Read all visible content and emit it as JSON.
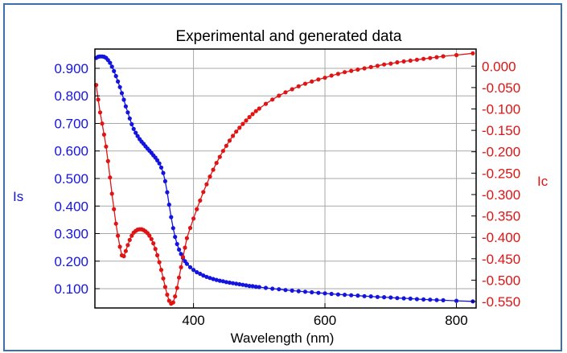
{
  "chart_data": {
    "type": "line",
    "title": "Experimental and generated data",
    "xlabel": "Wavelength (nm)",
    "ylabel_left": "Is",
    "ylabel_right": "Ic",
    "xlim": [
      250,
      830
    ],
    "ylim_left": [
      0.03,
      0.97
    ],
    "ylim_right": [
      -0.565,
      0.04
    ],
    "x_ticks": [
      "400",
      "600",
      "800"
    ],
    "y_left_ticks": [
      "0.100",
      "0.200",
      "0.300",
      "0.400",
      "0.500",
      "0.600",
      "0.700",
      "0.800",
      "0.900"
    ],
    "y_right_ticks": [
      "0.000",
      "-0.050",
      "-0.100",
      "-0.150",
      "-0.200",
      "-0.250",
      "-0.300",
      "-0.350",
      "-0.400",
      "-0.450",
      "-0.500",
      "-0.550"
    ],
    "grid": true,
    "colors": {
      "Is": "#1414e0",
      "Ic": "#e01414",
      "grid": "#a8a8a8",
      "frame": "#3a6fb0"
    },
    "series": [
      {
        "axis": "left",
        "color": "#1414e0",
        "points": [
          [
            252,
            0.938
          ],
          [
            255,
            0.942
          ],
          [
            258,
            0.943
          ],
          [
            261,
            0.943
          ],
          [
            264,
            0.942
          ],
          [
            267,
            0.938
          ],
          [
            270,
            0.93
          ],
          [
            273,
            0.92
          ],
          [
            276,
            0.906
          ],
          [
            279,
            0.89
          ],
          [
            282,
            0.872
          ],
          [
            285,
            0.852
          ],
          [
            288,
            0.832
          ],
          [
            291,
            0.81
          ],
          [
            294,
            0.786
          ],
          [
            297,
            0.762
          ],
          [
            300,
            0.74
          ],
          [
            303,
            0.718
          ],
          [
            306,
            0.697
          ],
          [
            309,
            0.68
          ],
          [
            312,
            0.666
          ],
          [
            315,
            0.654
          ],
          [
            318,
            0.643
          ],
          [
            321,
            0.634
          ],
          [
            324,
            0.626
          ],
          [
            327,
            0.617
          ],
          [
            330,
            0.609
          ],
          [
            333,
            0.601
          ],
          [
            336,
            0.593
          ],
          [
            339,
            0.584
          ],
          [
            342,
            0.576
          ],
          [
            345,
            0.566
          ],
          [
            348,
            0.555
          ],
          [
            351,
            0.54
          ],
          [
            354,
            0.52
          ],
          [
            357,
            0.49
          ],
          [
            360,
            0.45
          ],
          [
            363,
            0.405
          ],
          [
            366,
            0.36
          ],
          [
            369,
            0.32
          ],
          [
            372,
            0.288
          ],
          [
            375,
            0.262
          ],
          [
            378,
            0.242
          ],
          [
            381,
            0.226
          ],
          [
            384,
            0.212
          ],
          [
            387,
            0.2
          ],
          [
            390,
            0.19
          ],
          [
            395,
            0.178
          ],
          [
            400,
            0.168
          ],
          [
            405,
            0.16
          ],
          [
            410,
            0.154
          ],
          [
            415,
            0.148
          ],
          [
            420,
            0.143
          ],
          [
            425,
            0.139
          ],
          [
            430,
            0.135
          ],
          [
            435,
            0.132
          ],
          [
            440,
            0.129
          ],
          [
            445,
            0.127
          ],
          [
            450,
            0.124
          ],
          [
            455,
            0.122
          ],
          [
            460,
            0.12
          ],
          [
            465,
            0.118
          ],
          [
            470,
            0.116
          ],
          [
            475,
            0.114
          ],
          [
            480,
            0.112
          ],
          [
            485,
            0.11
          ],
          [
            490,
            0.109
          ],
          [
            495,
            0.107
          ],
          [
            500,
            0.106
          ],
          [
            510,
            0.103
          ],
          [
            520,
            0.1
          ],
          [
            530,
            0.098
          ],
          [
            540,
            0.095
          ],
          [
            550,
            0.093
          ],
          [
            560,
            0.091
          ],
          [
            570,
            0.089
          ],
          [
            580,
            0.087
          ],
          [
            590,
            0.085
          ],
          [
            600,
            0.083
          ],
          [
            610,
            0.081
          ],
          [
            620,
            0.079
          ],
          [
            630,
            0.078
          ],
          [
            640,
            0.076
          ],
          [
            650,
            0.075
          ],
          [
            660,
            0.073
          ],
          [
            670,
            0.072
          ],
          [
            680,
            0.07
          ],
          [
            690,
            0.069
          ],
          [
            700,
            0.068
          ],
          [
            710,
            0.066
          ],
          [
            720,
            0.065
          ],
          [
            730,
            0.064
          ],
          [
            740,
            0.062
          ],
          [
            750,
            0.061
          ],
          [
            760,
            0.06
          ],
          [
            770,
            0.059
          ],
          [
            780,
            0.058
          ],
          [
            800,
            0.056
          ],
          [
            825,
            0.054
          ]
        ]
      },
      {
        "axis": "right",
        "color": "#e01414",
        "points": [
          [
            252,
            -0.044
          ],
          [
            255,
            -0.078
          ],
          [
            258,
            -0.108
          ],
          [
            261,
            -0.134
          ],
          [
            264,
            -0.16
          ],
          [
            267,
            -0.188
          ],
          [
            270,
            -0.222
          ],
          [
            273,
            -0.26
          ],
          [
            276,
            -0.298
          ],
          [
            279,
            -0.334
          ],
          [
            282,
            -0.368
          ],
          [
            285,
            -0.396
          ],
          [
            288,
            -0.422
          ],
          [
            291,
            -0.442
          ],
          [
            294,
            -0.444
          ],
          [
            297,
            -0.432
          ],
          [
            300,
            -0.418
          ],
          [
            303,
            -0.406
          ],
          [
            306,
            -0.396
          ],
          [
            309,
            -0.389
          ],
          [
            312,
            -0.385
          ],
          [
            315,
            -0.382
          ],
          [
            318,
            -0.381
          ],
          [
            321,
            -0.381
          ],
          [
            324,
            -0.383
          ],
          [
            327,
            -0.386
          ],
          [
            330,
            -0.39
          ],
          [
            333,
            -0.396
          ],
          [
            336,
            -0.404
          ],
          [
            339,
            -0.414
          ],
          [
            342,
            -0.427
          ],
          [
            345,
            -0.442
          ],
          [
            348,
            -0.458
          ],
          [
            351,
            -0.476
          ],
          [
            354,
            -0.496
          ],
          [
            357,
            -0.516
          ],
          [
            360,
            -0.534
          ],
          [
            363,
            -0.548
          ],
          [
            366,
            -0.555
          ],
          [
            369,
            -0.552
          ],
          [
            372,
            -0.538
          ],
          [
            375,
            -0.518
          ],
          [
            378,
            -0.494
          ],
          [
            381,
            -0.47
          ],
          [
            384,
            -0.446
          ],
          [
            387,
            -0.424
          ],
          [
            390,
            -0.402
          ],
          [
            395,
            -0.378
          ],
          [
            400,
            -0.356
          ],
          [
            405,
            -0.334
          ],
          [
            410,
            -0.314
          ],
          [
            415,
            -0.294
          ],
          [
            420,
            -0.276
          ],
          [
            425,
            -0.258
          ],
          [
            430,
            -0.242
          ],
          [
            435,
            -0.226
          ],
          [
            440,
            -0.212
          ],
          [
            445,
            -0.198
          ],
          [
            450,
            -0.186
          ],
          [
            455,
            -0.174
          ],
          [
            460,
            -0.163
          ],
          [
            465,
            -0.153
          ],
          [
            470,
            -0.144
          ],
          [
            475,
            -0.135
          ],
          [
            480,
            -0.127
          ],
          [
            485,
            -0.119
          ],
          [
            490,
            -0.112
          ],
          [
            495,
            -0.105
          ],
          [
            500,
            -0.099
          ],
          [
            510,
            -0.088
          ],
          [
            520,
            -0.078
          ],
          [
            530,
            -0.069
          ],
          [
            540,
            -0.061
          ],
          [
            550,
            -0.054
          ],
          [
            560,
            -0.047
          ],
          [
            570,
            -0.041
          ],
          [
            580,
            -0.036
          ],
          [
            590,
            -0.031
          ],
          [
            600,
            -0.027
          ],
          [
            610,
            -0.022
          ],
          [
            620,
            -0.018
          ],
          [
            630,
            -0.014
          ],
          [
            640,
            -0.011
          ],
          [
            650,
            -0.008
          ],
          [
            660,
            -0.005
          ],
          [
            670,
            -0.002
          ],
          [
            680,
            0.001
          ],
          [
            690,
            0.004
          ],
          [
            700,
            0.006
          ],
          [
            710,
            0.009
          ],
          [
            720,
            0.011
          ],
          [
            730,
            0.013
          ],
          [
            740,
            0.015
          ],
          [
            750,
            0.017
          ],
          [
            760,
            0.019
          ],
          [
            770,
            0.021
          ],
          [
            780,
            0.023
          ],
          [
            800,
            0.026
          ],
          [
            825,
            0.03
          ]
        ]
      }
    ]
  }
}
